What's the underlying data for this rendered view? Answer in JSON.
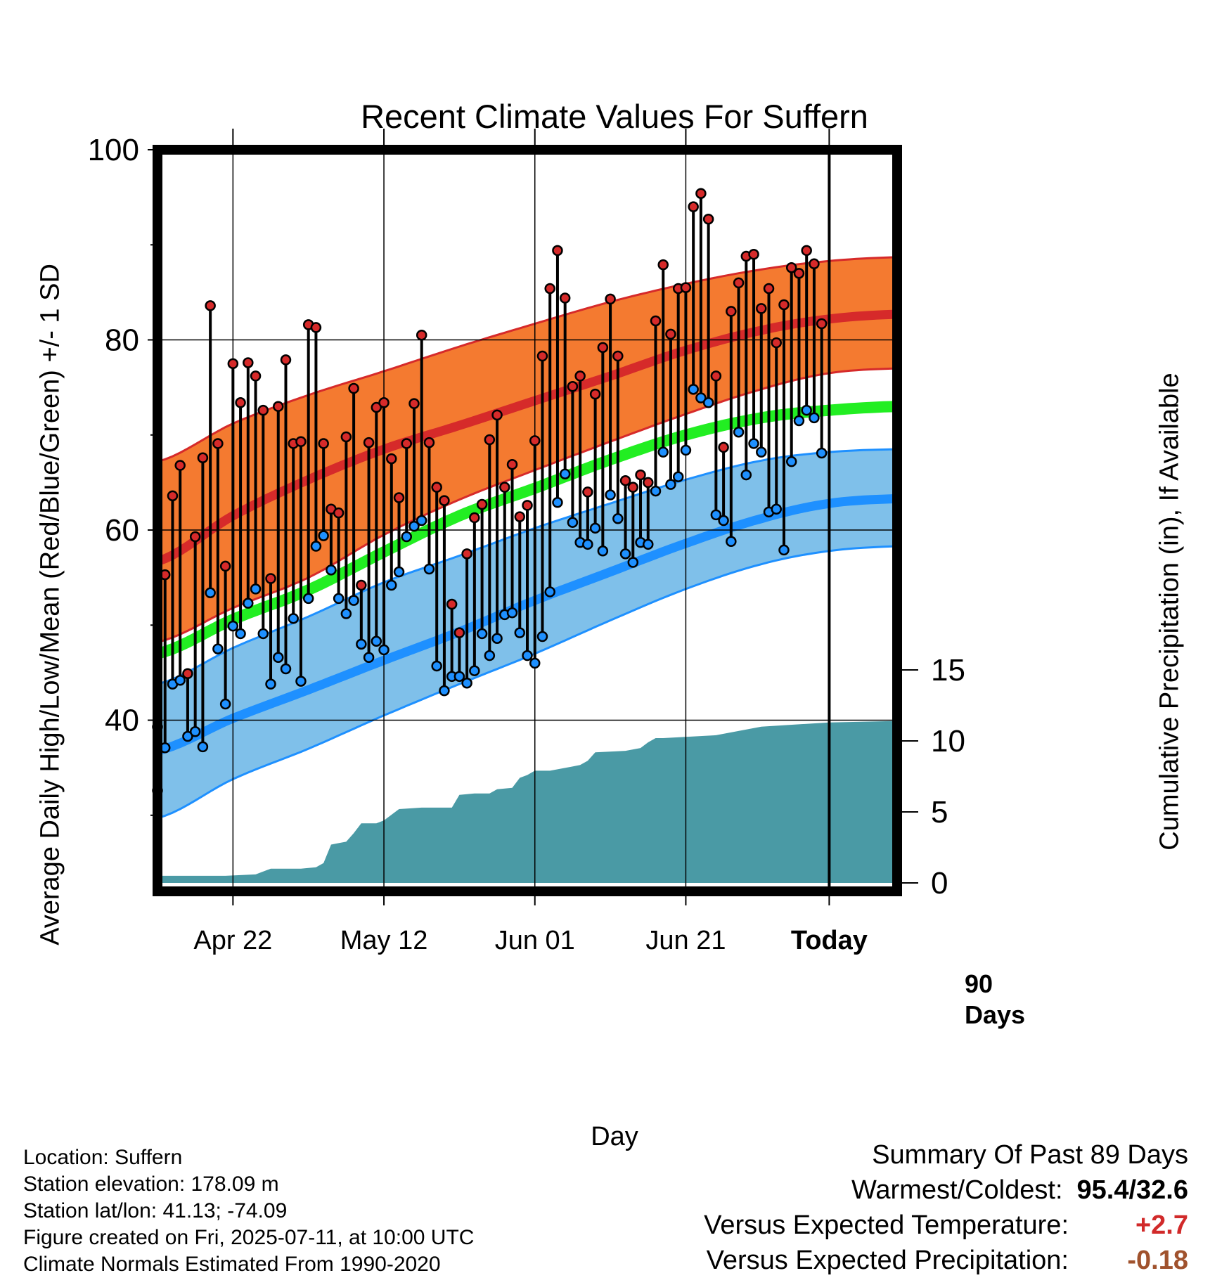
{
  "title": "Recent Climate Values For Suffern",
  "left_axis_label": "Average Daily High/Low/Mean (Red/Blue/Green) +/- 1 SD",
  "right_axis_label": "Cumulative Precipitation (in), If Available",
  "x_axis_label": "Day",
  "today_label_line1": "90",
  "today_label_line2": "Days",
  "metadata": {
    "location": "Location: Suffern",
    "elevation": "Station elevation: 178.09 m",
    "latlon": "Station lat/lon: 41.13; -74.09",
    "created": "Figure created on Fri, 2025-07-11, at 10:00 UTC",
    "normals": "Climate Normals Estimated From 1990-2020"
  },
  "summary": {
    "heading": "Summary Of Past 89 Days",
    "warm_cold_label": "Warmest/Coldest:",
    "warm_cold_value": "95.4/32.6",
    "temp_label": "Versus Expected Temperature:",
    "temp_value": "+2.7",
    "precip_label": "Versus Expected Precipitation:",
    "precip_value": "-0.18"
  },
  "colors": {
    "high_band": "#f47a30",
    "high_mean": "#d62a2a",
    "low_band": "#7fc0ea",
    "low_mean": "#1e90ff",
    "mean_line": "#22ee22",
    "precip": "#4a9aa5",
    "high_dot": "#d62a2a",
    "low_dot": "#1e90ff"
  },
  "chart_data": {
    "type": "line",
    "x_range": [
      -89,
      9
    ],
    "x_ticks": [
      {
        "day": -79,
        "label": "Apr 22"
      },
      {
        "day": -59,
        "label": "May 12"
      },
      {
        "day": -39,
        "label": "Jun 01"
      },
      {
        "day": -19,
        "label": "Jun 21"
      },
      {
        "day": 0,
        "label": "Today"
      }
    ],
    "left_axis": {
      "range": [
        22,
        100
      ],
      "major_ticks": [
        40,
        60,
        80,
        100
      ],
      "minor_ticks": [
        30,
        50,
        70,
        90
      ]
    },
    "right_axis": {
      "range": [
        0,
        15
      ],
      "ticks": [
        0,
        5,
        10,
        15
      ]
    },
    "today_day": 0,
    "normals": {
      "x": [
        -89,
        -79,
        -69,
        -59,
        -49,
        -39,
        -29,
        -19,
        -9,
        0,
        9
      ],
      "high_mean": [
        56.7,
        61.5,
        65.3,
        68.5,
        71.0,
        73.6,
        76.2,
        78.9,
        81.0,
        82.2,
        82.7
      ],
      "high_upper": [
        67.2,
        71.2,
        74.2,
        76.7,
        79.3,
        81.7,
        84.0,
        85.9,
        87.4,
        88.3,
        88.7
      ],
      "high_lower": [
        48.2,
        51.8,
        55.0,
        59.5,
        63.2,
        66.3,
        69.3,
        72.2,
        74.8,
        76.5,
        77.0
      ],
      "mean_line": [
        47.0,
        50.6,
        53.7,
        57.7,
        61.5,
        64.4,
        67.4,
        70.0,
        71.8,
        72.6,
        73.0
      ],
      "low_mean": [
        36.8,
        40.2,
        43.2,
        46.3,
        49.3,
        52.6,
        55.6,
        58.6,
        61.2,
        62.8,
        63.3
      ],
      "low_upper": [
        43.8,
        47.6,
        50.9,
        54.5,
        57.3,
        60.2,
        62.8,
        65.3,
        67.3,
        68.2,
        68.5
      ],
      "low_lower": [
        29.7,
        33.8,
        37.0,
        40.5,
        43.8,
        47.0,
        50.5,
        53.8,
        56.4,
        57.8,
        58.3
      ]
    },
    "daily": {
      "day": [
        -89,
        -88,
        -87,
        -86,
        -85,
        -84,
        -83,
        -82,
        -81,
        -80,
        -79,
        -78,
        -77,
        -76,
        -75,
        -74,
        -73,
        -72,
        -71,
        -70,
        -69,
        -68,
        -67,
        -66,
        -65,
        -64,
        -63,
        -62,
        -61,
        -60,
        -59,
        -58,
        -57,
        -56,
        -55,
        -54,
        -53,
        -52,
        -51,
        -50,
        -49,
        -48,
        -47,
        -46,
        -45,
        -44,
        -43,
        -42,
        -41,
        -40,
        -39,
        -38,
        -37,
        -36,
        -35,
        -34,
        -33,
        -32,
        -31,
        -30,
        -29,
        -28,
        -27,
        -26,
        -25,
        -24,
        -23,
        -22,
        -21,
        -20,
        -19,
        -18,
        -17,
        -16,
        -15,
        -14,
        -13,
        -12,
        -11,
        -10,
        -9,
        -8,
        -7,
        -6,
        -5,
        -4,
        -3,
        -2,
        -1
      ],
      "high": [
        39.3,
        55.3,
        63.6,
        66.8,
        44.9,
        59.3,
        67.6,
        83.6,
        69.1,
        56.2,
        77.5,
        73.4,
        77.6,
        76.2,
        72.6,
        54.9,
        73.0,
        77.9,
        69.1,
        69.3,
        81.6,
        81.3,
        69.1,
        62.2,
        61.8,
        69.8,
        74.9,
        54.2,
        69.2,
        72.9,
        73.4,
        67.5,
        63.4,
        69.1,
        73.3,
        80.5,
        69.2,
        64.5,
        63.1,
        52.2,
        49.2,
        57.5,
        61.3,
        62.7,
        69.5,
        72.1,
        64.5,
        66.9,
        61.4,
        62.6,
        69.4,
        78.3,
        85.4,
        89.4,
        84.4,
        75.1,
        76.2,
        64.0,
        74.3,
        79.2,
        84.3,
        78.3,
        65.2,
        64.5,
        65.8,
        65.0,
        82.0,
        87.9,
        80.6,
        85.4,
        85.5,
        94.0,
        95.4,
        92.7,
        76.2,
        68.7,
        83.0,
        86.0,
        88.8,
        89.0,
        83.3,
        85.4,
        79.7,
        83.7,
        87.6,
        87.0,
        89.4,
        88.0,
        81.7
      ],
      "low": [
        32.6,
        37.1,
        43.8,
        44.2,
        38.3,
        38.8,
        37.2,
        53.4,
        47.5,
        41.7,
        49.9,
        49.1,
        52.3,
        53.8,
        49.1,
        43.8,
        46.6,
        45.4,
        50.7,
        44.1,
        52.8,
        58.3,
        59.4,
        55.8,
        52.8,
        51.2,
        52.6,
        48.0,
        46.6,
        48.3,
        47.4,
        54.2,
        55.6,
        59.3,
        60.4,
        61.0,
        55.9,
        45.7,
        43.1,
        44.6,
        44.6,
        43.9,
        45.2,
        49.1,
        46.8,
        48.6,
        51.1,
        51.3,
        49.2,
        46.8,
        46.0,
        48.8,
        53.5,
        62.9,
        65.9,
        60.8,
        58.7,
        58.5,
        60.2,
        57.8,
        63.7,
        61.2,
        57.5,
        56.6,
        58.7,
        58.5,
        64.1,
        68.2,
        64.8,
        65.6,
        68.4,
        74.8,
        73.9,
        73.4,
        61.6,
        61.0,
        58.8,
        70.3,
        65.8,
        69.1,
        68.2,
        61.9,
        62.2,
        57.9,
        67.2,
        71.5,
        72.6,
        71.8,
        68.1
      ]
    },
    "precip_cumulative": {
      "day": [
        -89,
        -80,
        -76,
        -74,
        -70,
        -68,
        -67,
        -66,
        -65,
        -64,
        -63,
        -62,
        -61,
        -60,
        -59,
        -57,
        -54,
        -50,
        -49,
        -47,
        -45,
        -44,
        -42,
        -41,
        -40,
        -39,
        -38,
        -37,
        -34,
        -33,
        -32,
        -31,
        -27,
        -25,
        -24,
        -23,
        -22,
        -15,
        -9,
        0,
        9
      ],
      "value": [
        0.5,
        0.5,
        0.6,
        1.0,
        1.0,
        1.1,
        1.4,
        2.7,
        2.8,
        2.9,
        3.5,
        4.2,
        4.2,
        4.2,
        4.4,
        5.2,
        5.3,
        5.3,
        6.2,
        6.3,
        6.3,
        6.6,
        6.7,
        7.4,
        7.6,
        7.9,
        7.9,
        7.9,
        8.2,
        8.3,
        8.6,
        9.2,
        9.3,
        9.5,
        9.9,
        10.2,
        10.2,
        10.4,
        11.0,
        11.3,
        11.4
      ]
    }
  }
}
